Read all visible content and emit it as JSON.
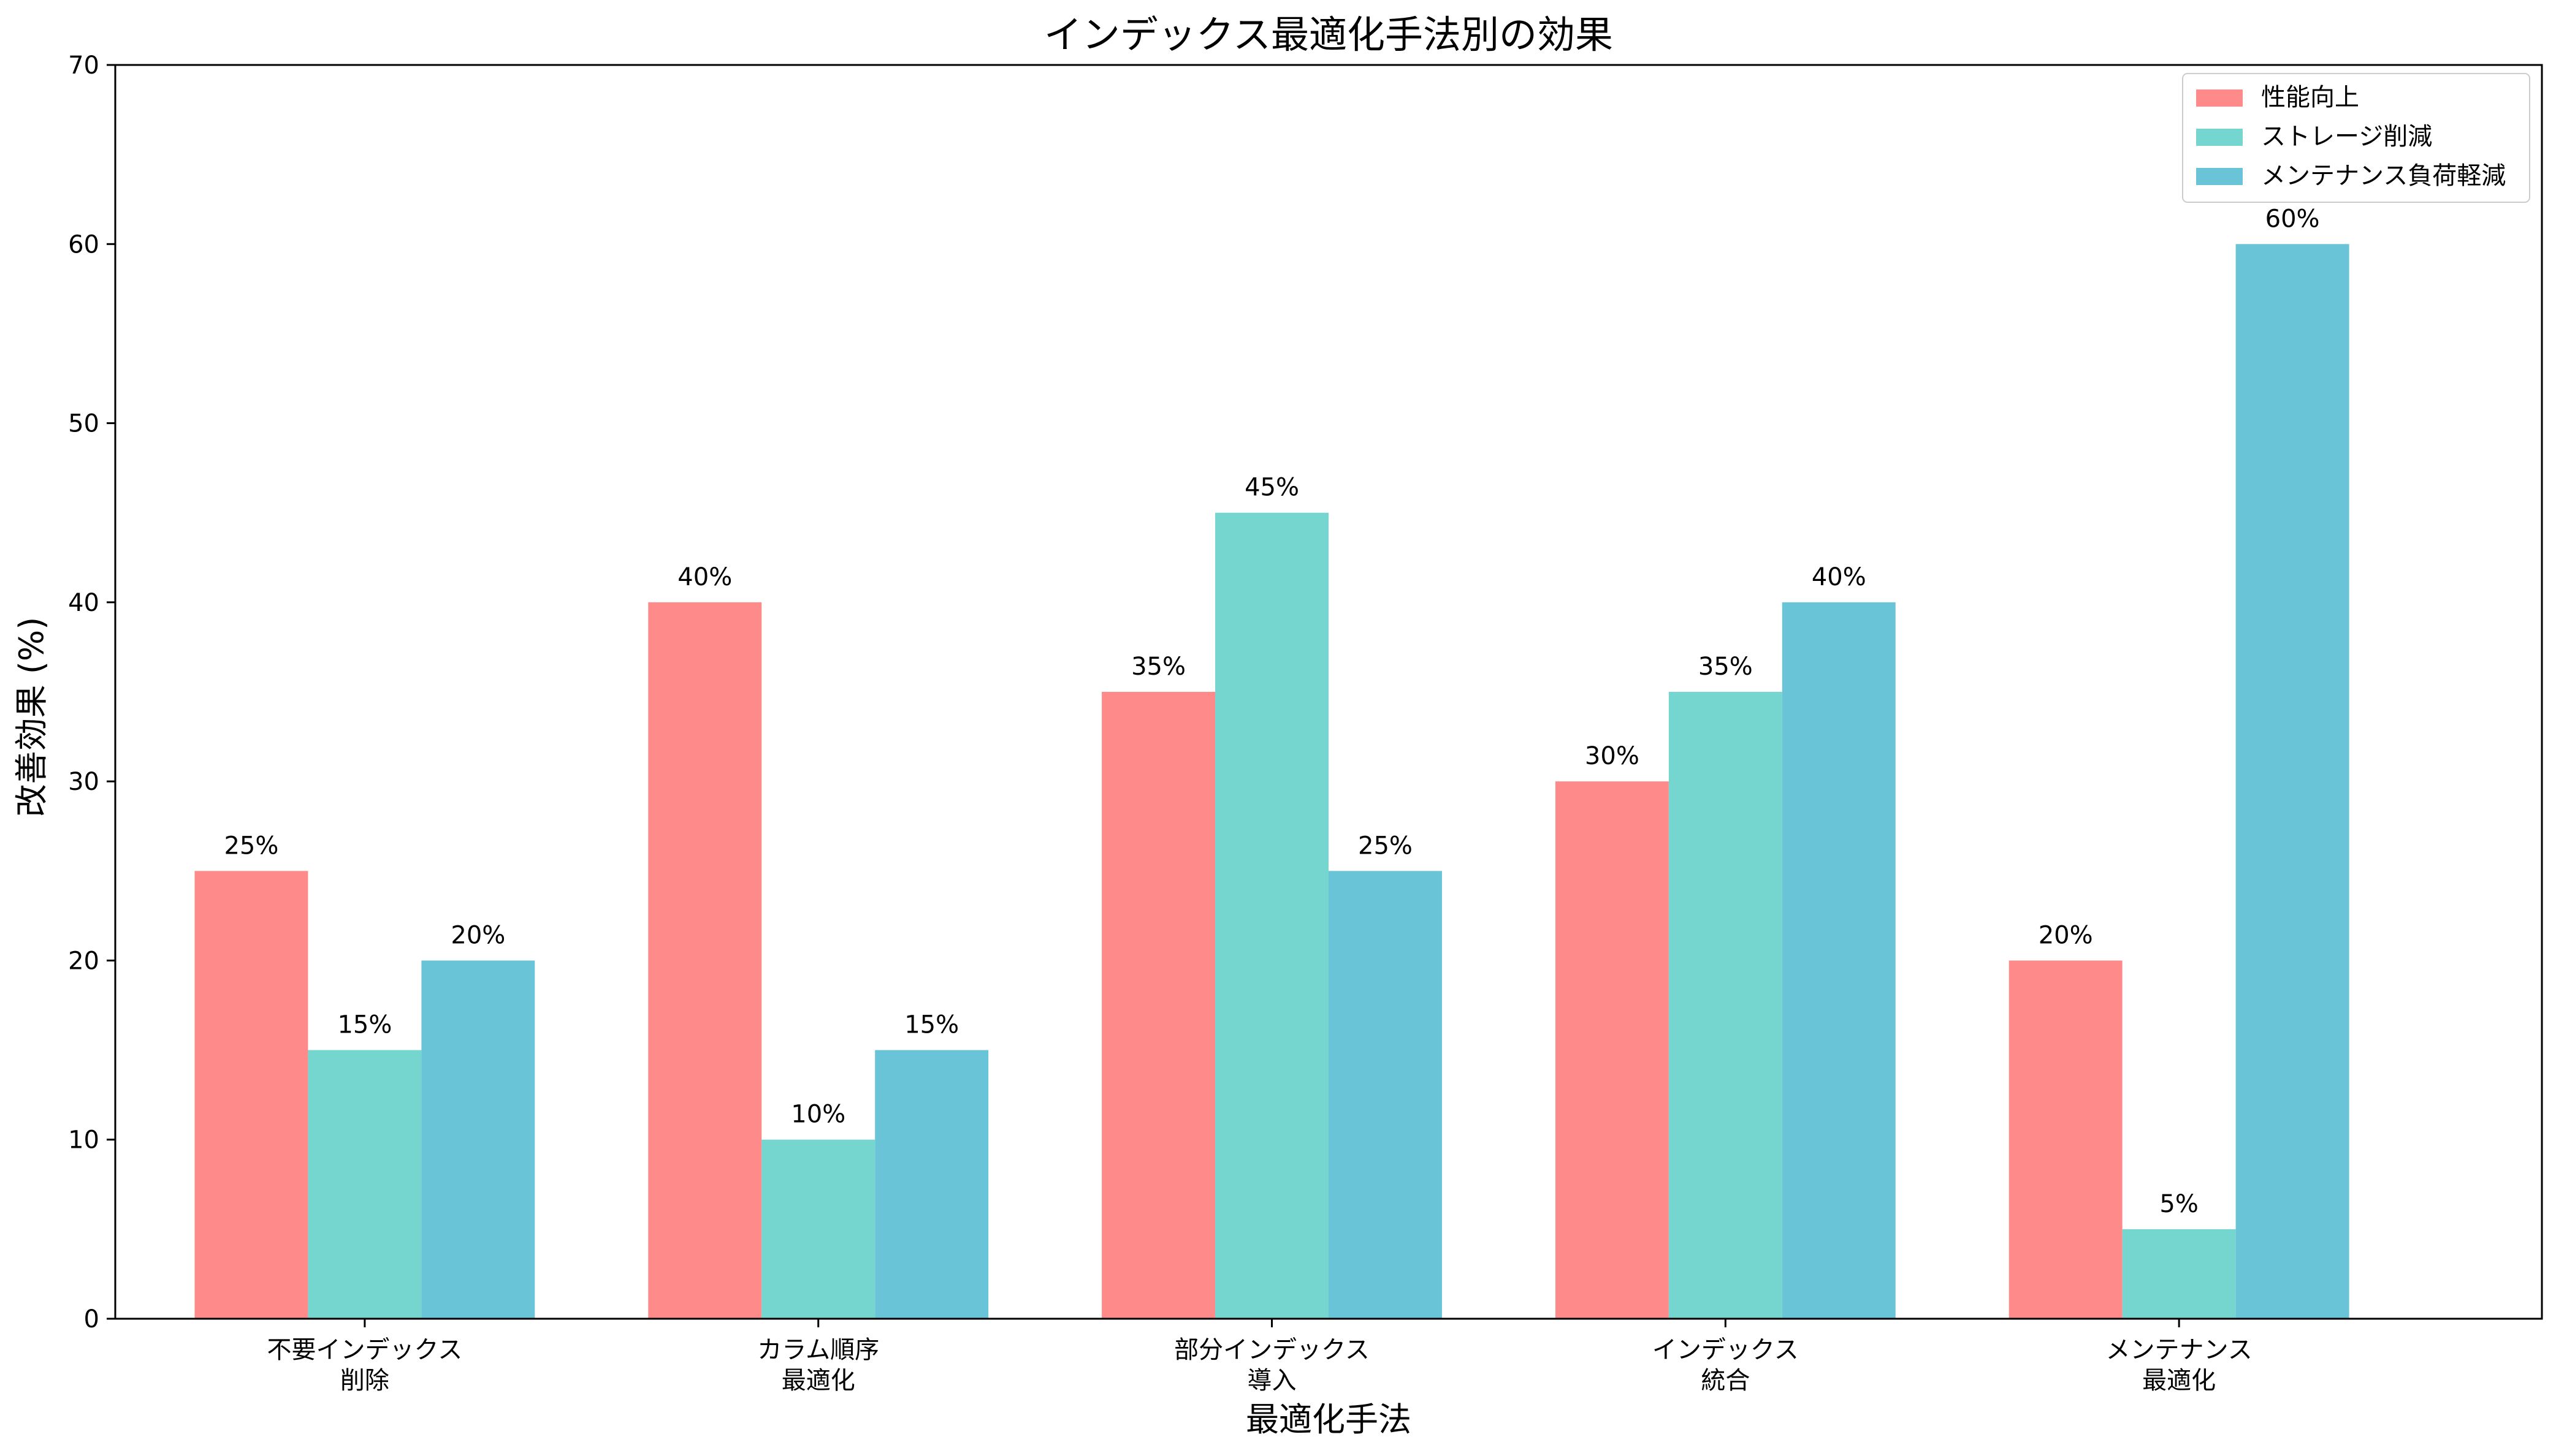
{
  "chart_data": {
    "type": "bar",
    "title": "インデックス最適化手法別の効果",
    "xlabel": "最適化手法",
    "ylabel": "改善効果 (%)",
    "ylim": [
      0,
      70
    ],
    "yticks": [
      0,
      10,
      20,
      30,
      40,
      50,
      60,
      70
    ],
    "categories": [
      [
        "不要インデックス",
        "削除"
      ],
      [
        "カラム順序",
        "最適化"
      ],
      [
        "部分インデックス",
        "導入"
      ],
      [
        "インデックス",
        "統合"
      ],
      [
        "メンテナンス",
        "最適化"
      ]
    ],
    "series": [
      {
        "name": "性能向上",
        "color": "#FF8A8A",
        "values": [
          25,
          40,
          35,
          30,
          20
        ]
      },
      {
        "name": "ストレージ削減",
        "color": "#74D6CF",
        "values": [
          15,
          10,
          45,
          35,
          5
        ]
      },
      {
        "name": "メンテナンス負荷軽減",
        "color": "#6AC4D8",
        "values": [
          20,
          15,
          25,
          40,
          60
        ]
      }
    ],
    "value_label_suffix": "%",
    "legend_position": "upper-right",
    "grid": false
  }
}
